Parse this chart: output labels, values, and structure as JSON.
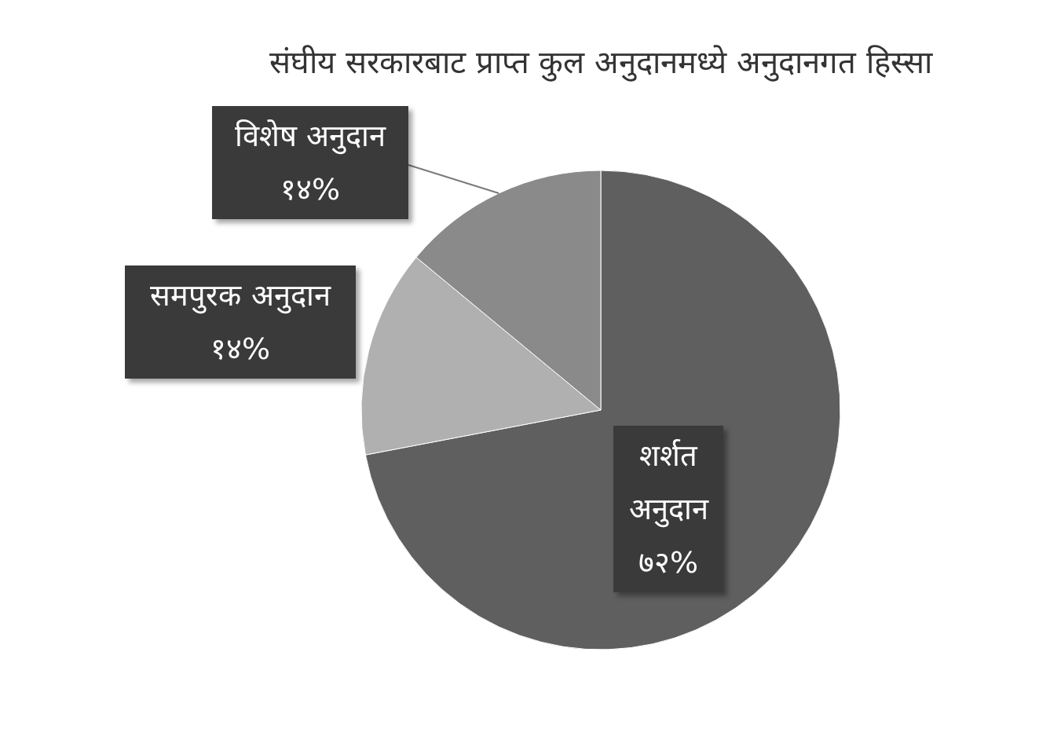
{
  "chart_data": {
    "type": "pie",
    "title": "संघीय सरकारबाट प्राप्त कुल अनुदानमध्ये अनुदानगत हिस्सा",
    "categories": [
      "शर्शत अनुदान",
      "समपुरक अनुदान",
      "विशेष अनुदान"
    ],
    "values": [
      72,
      14,
      14
    ],
    "value_labels": [
      "७२%",
      "१४%",
      "१४%"
    ],
    "colors": [
      "#5f5f5f",
      "#b0b0b0",
      "#8a8a8a"
    ]
  }
}
